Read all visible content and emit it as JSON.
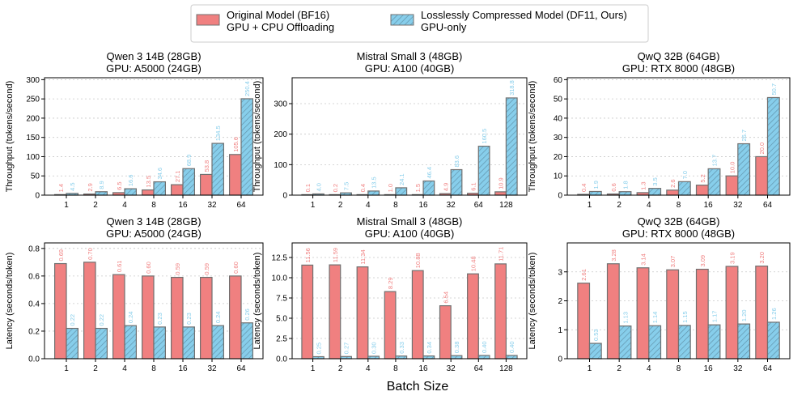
{
  "legend": {
    "original": "Original Model (BF16)\nGPU + CPU Offloading",
    "compressed": "Losslessly Compressed Model (DF11, Ours)\nGPU-only"
  },
  "xlabel": "Batch Size",
  "colors": {
    "original": "#f08080",
    "compressed": "#87ceeb",
    "edge": "#707070",
    "original_label": "#f08080",
    "compressed_label": "#87ceeb"
  },
  "chart_data": [
    {
      "type": "bar",
      "title": "Qwen 3 14B (28GB)\nGPU: A5000 (24GB)",
      "ylabel": "Throughput (tokens/second)",
      "ylim": [
        0,
        305
      ],
      "yticks": [
        0,
        50,
        100,
        150,
        200,
        250,
        300
      ],
      "categories": [
        "1",
        "2",
        "4",
        "8",
        "16",
        "32",
        "64"
      ],
      "series": [
        {
          "name": "Original Model (BF16) GPU + CPU Offloading",
          "values": [
            1.4,
            2.9,
            6.5,
            13.5,
            27.1,
            53.8,
            105.6
          ],
          "labels": [
            "1.4",
            "2.9",
            "6.5",
            "13.5",
            "27.1",
            "53.8",
            "105.6"
          ]
        },
        {
          "name": "Losslessly Compressed Model (DF11, Ours) GPU-only",
          "values": [
            4.5,
            8.9,
            16.6,
            34.6,
            68.9,
            134.5,
            250.4
          ],
          "labels": [
            "4.5",
            "8.9",
            "16.6",
            "34.6",
            "68.9",
            "134.5",
            "250.4"
          ]
        }
      ]
    },
    {
      "type": "bar",
      "title": "Mistral Small 3 (48GB)\nGPU: A100 (40GB)",
      "ylabel": "Throughput (tokens/second)",
      "ylim": [
        0,
        385
      ],
      "yticks": [
        0,
        100,
        200,
        300
      ],
      "categories": [
        "1",
        "2",
        "4",
        "8",
        "16",
        "32",
        "64",
        "128"
      ],
      "series": [
        {
          "name": "Original Model (BF16) GPU + CPU Offloading",
          "values": [
            0.1,
            0.2,
            0.4,
            1.0,
            1.5,
            4.9,
            6.1,
            10.9
          ],
          "labels": [
            "0.1",
            "0.2",
            "0.4",
            "1.0",
            "1.5",
            "4.9",
            "6.1",
            "10.9"
          ]
        },
        {
          "name": "Losslessly Compressed Model (DF11, Ours) GPU-only",
          "values": [
            4.0,
            7.5,
            13.5,
            24.1,
            46.4,
            83.6,
            160.5,
            318.8
          ],
          "labels": [
            "4.0",
            "7.5",
            "13.5",
            "24.1",
            "46.4",
            "83.6",
            "160.5",
            "318.8"
          ]
        }
      ]
    },
    {
      "type": "bar",
      "title": "QwQ 32B (64GB)\nGPU: RTX 8000 (48GB)",
      "ylabel": "Throughput (tokens/second)",
      "ylim": [
        0,
        61
      ],
      "yticks": [
        0,
        10,
        20,
        30,
        40,
        50,
        60
      ],
      "categories": [
        "1",
        "2",
        "4",
        "8",
        "16",
        "32",
        "64"
      ],
      "series": [
        {
          "name": "Original Model (BF16) GPU + CPU Offloading",
          "values": [
            0.4,
            0.6,
            1.3,
            2.6,
            5.2,
            10.0,
            20.0
          ],
          "labels": [
            "0.4",
            "0.6",
            "1.3",
            "2.6",
            "5.2",
            "10.0",
            "20.0"
          ]
        },
        {
          "name": "Losslessly Compressed Model (DF11, Ours) GPU-only",
          "values": [
            1.9,
            1.8,
            3.5,
            7.0,
            13.7,
            26.7,
            50.7
          ],
          "labels": [
            "1.9",
            "1.8",
            "3.5",
            "7.0",
            "13.7",
            "26.7",
            "50.7"
          ]
        }
      ]
    },
    {
      "type": "bar",
      "title": "Qwen 3 14B (28GB)\nGPU: A5000 (24GB)",
      "ylabel": "Latency (seconds/token)",
      "ylim": [
        0,
        0.84
      ],
      "yticks": [
        0.0,
        0.2,
        0.4,
        0.6,
        0.8
      ],
      "ytick_labels": [
        "0.0",
        "0.2",
        "0.4",
        "0.6",
        "0.8"
      ],
      "categories": [
        "1",
        "2",
        "4",
        "8",
        "16",
        "32",
        "64"
      ],
      "series": [
        {
          "name": "Original Model (BF16) GPU + CPU Offloading",
          "values": [
            0.69,
            0.7,
            0.61,
            0.6,
            0.59,
            0.59,
            0.6
          ],
          "labels": [
            "0.69",
            "0.70",
            "0.61",
            "0.60",
            "0.59",
            "0.59",
            "0.60"
          ]
        },
        {
          "name": "Losslessly Compressed Model (DF11, Ours) GPU-only",
          "values": [
            0.22,
            0.22,
            0.24,
            0.23,
            0.23,
            0.24,
            0.26
          ],
          "labels": [
            "0.22",
            "0.22",
            "0.24",
            "0.23",
            "0.23",
            "0.24",
            "0.26"
          ]
        }
      ]
    },
    {
      "type": "bar",
      "title": "Mistral Small 3 (48GB)\nGPU: A100 (40GB)",
      "ylabel": "Latency (seconds/token)",
      "ylim": [
        0,
        14.3
      ],
      "yticks": [
        0.0,
        2.5,
        5.0,
        7.5,
        10.0,
        12.5
      ],
      "ytick_labels": [
        "0.0",
        "2.5",
        "5.0",
        "7.5",
        "10.0",
        "12.5"
      ],
      "categories": [
        "1",
        "2",
        "4",
        "8",
        "16",
        "32",
        "64",
        "128"
      ],
      "series": [
        {
          "name": "Original Model (BF16) GPU + CPU Offloading",
          "values": [
            11.56,
            11.59,
            11.34,
            8.29,
            10.88,
            6.54,
            10.48,
            11.71
          ],
          "labels": [
            "11.56",
            "11.59",
            "11.34",
            "8.29",
            "10.88",
            "6.54",
            "10.48",
            "11.71"
          ]
        },
        {
          "name": "Losslessly Compressed Model (DF11, Ours) GPU-only",
          "values": [
            0.25,
            0.27,
            0.3,
            0.33,
            0.34,
            0.38,
            0.4,
            0.4
          ],
          "labels": [
            "0.25",
            "0.27",
            "0.30",
            "0.33",
            "0.34",
            "0.38",
            "0.40",
            "0.40"
          ]
        }
      ]
    },
    {
      "type": "bar",
      "title": "QwQ 32B (64GB)\nGPU: RTX 8000 (48GB)",
      "ylabel": "Latency (seconds/token)",
      "ylim": [
        0,
        4.0
      ],
      "yticks": [
        0,
        1,
        2,
        3
      ],
      "categories": [
        "1",
        "2",
        "4",
        "8",
        "16",
        "32",
        "64"
      ],
      "series": [
        {
          "name": "Original Model (BF16) GPU + CPU Offloading",
          "values": [
            2.61,
            3.28,
            3.14,
            3.07,
            3.09,
            3.19,
            3.2
          ],
          "labels": [
            "2.61",
            "3.28",
            "3.14",
            "3.07",
            "3.09",
            "3.19",
            "3.20"
          ]
        },
        {
          "name": "Losslessly Compressed Model (DF11, Ours) GPU-only",
          "values": [
            0.53,
            1.13,
            1.14,
            1.15,
            1.17,
            1.2,
            1.26
          ],
          "labels": [
            "0.53",
            "1.13",
            "1.14",
            "1.15",
            "1.17",
            "1.20",
            "1.26"
          ]
        }
      ]
    }
  ]
}
